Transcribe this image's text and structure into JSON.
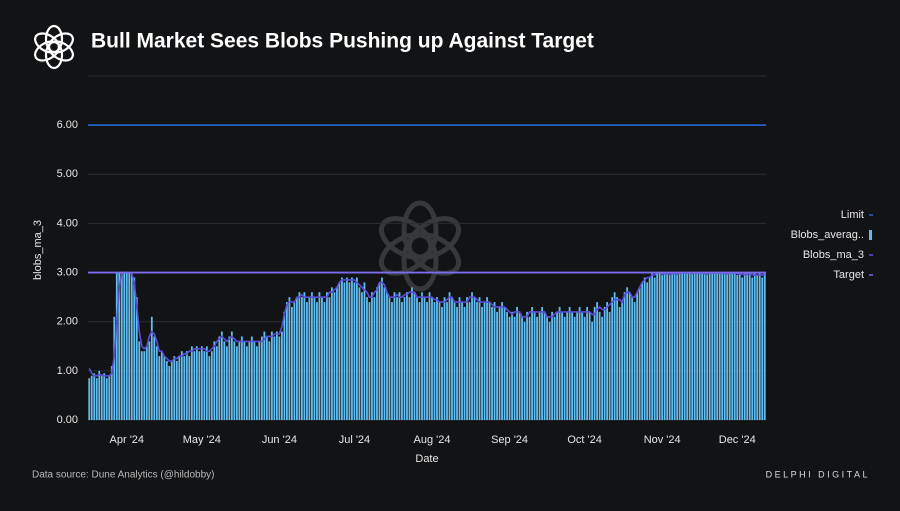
{
  "header": {
    "title": "Bull Market Sees Blobs Pushing up Against Target"
  },
  "footer": {
    "source": "Data source: Dune Analytics (@hildobby)",
    "brand": "DELPHI DIGITAL"
  },
  "chart_data": {
    "type": "bar",
    "x_label": "Date",
    "y_label": "blobs_ma_3",
    "ylim": [
      0,
      7
    ],
    "yticks": [
      {
        "value": 0,
        "label": "0.00"
      },
      {
        "value": 1,
        "label": "1.00"
      },
      {
        "value": 2,
        "label": "2.00"
      },
      {
        "value": 3,
        "label": "3.00"
      },
      {
        "value": 4,
        "label": "4.00"
      },
      {
        "value": 5,
        "label": "5.00"
      },
      {
        "value": 6,
        "label": "6.00"
      }
    ],
    "grid": true,
    "legend": "right",
    "categories": [
      null,
      null,
      null,
      null,
      null,
      null,
      null,
      null,
      null,
      null,
      null,
      null,
      null,
      null,
      null,
      "Apr '24",
      null,
      null,
      null,
      null,
      null,
      null,
      null,
      null,
      null,
      null,
      null,
      null,
      null,
      null,
      null,
      null,
      null,
      null,
      null,
      null,
      null,
      null,
      null,
      null,
      null,
      null,
      null,
      null,
      null,
      "May '24",
      null,
      null,
      null,
      null,
      null,
      null,
      null,
      null,
      null,
      null,
      null,
      null,
      null,
      null,
      null,
      null,
      null,
      null,
      null,
      null,
      null,
      null,
      null,
      null,
      null,
      null,
      null,
      null,
      null,
      null,
      "Jun '24",
      null,
      null,
      null,
      null,
      null,
      null,
      null,
      null,
      null,
      null,
      null,
      null,
      null,
      null,
      null,
      null,
      null,
      null,
      null,
      null,
      null,
      null,
      null,
      null,
      null,
      null,
      null,
      null,
      null,
      "Jul '24",
      null,
      null,
      null,
      null,
      null,
      null,
      null,
      null,
      null,
      null,
      null,
      null,
      null,
      null,
      null,
      null,
      null,
      null,
      null,
      null,
      null,
      null,
      null,
      null,
      null,
      null,
      null,
      null,
      null,
      null,
      "Aug '24",
      null,
      null,
      null,
      null,
      null,
      null,
      null,
      null,
      null,
      null,
      null,
      null,
      null,
      null,
      null,
      null,
      null,
      null,
      null,
      null,
      null,
      null,
      null,
      null,
      null,
      null,
      null,
      null,
      null,
      null,
      "Sep '24",
      null,
      null,
      null,
      null,
      null,
      null,
      null,
      null,
      null,
      null,
      null,
      null,
      null,
      null,
      null,
      null,
      null,
      null,
      null,
      null,
      null,
      null,
      null,
      null,
      null,
      null,
      null,
      null,
      null,
      "Oct '24",
      null,
      null,
      null,
      null,
      null,
      null,
      null,
      null,
      null,
      null,
      null,
      null,
      null,
      null,
      null,
      null,
      null,
      null,
      null,
      null,
      null,
      null,
      null,
      null,
      null,
      null,
      null,
      null,
      null,
      null,
      "Nov '24",
      null,
      null,
      null,
      null,
      null,
      null,
      null,
      null,
      null,
      null,
      null,
      null,
      null,
      null,
      null,
      null,
      null,
      null,
      null,
      null,
      null,
      null,
      null,
      null,
      null,
      null,
      null,
      null,
      null,
      "Dec '24",
      null,
      null,
      null,
      null,
      null,
      null,
      null,
      null,
      null,
      null,
      null
    ],
    "series": [
      {
        "name": "Limit",
        "type": "hline",
        "color": "#2563c9",
        "value": 6
      },
      {
        "name": "Blobs_averag..",
        "type": "bar",
        "color": "#62bdf0",
        "values": [
          0.85,
          0.9,
          0.95,
          0.85,
          1,
          0.9,
          0.95,
          0.85,
          0.9,
          1.1,
          2.1,
          3,
          3,
          3,
          3,
          3,
          3,
          3,
          2.9,
          2.5,
          1.6,
          1.4,
          1.4,
          1.5,
          1.6,
          2.1,
          1.7,
          1.5,
          1.3,
          1.4,
          1.3,
          1.2,
          1.1,
          1.2,
          1.3,
          1.2,
          1.3,
          1.4,
          1.3,
          1.4,
          1.3,
          1.5,
          1.4,
          1.5,
          1.4,
          1.5,
          1.4,
          1.5,
          1.3,
          1.4,
          1.6,
          1.5,
          1.7,
          1.8,
          1.6,
          1.5,
          1.7,
          1.8,
          1.6,
          1.5,
          1.6,
          1.7,
          1.6,
          1.5,
          1.6,
          1.7,
          1.6,
          1.5,
          1.6,
          1.7,
          1.8,
          1.7,
          1.6,
          1.8,
          1.7,
          1.8,
          1.7,
          1.8,
          2.2,
          2.4,
          2.5,
          2.3,
          2.4,
          2.5,
          2.6,
          2.5,
          2.6,
          2.4,
          2.5,
          2.6,
          2.5,
          2.4,
          2.6,
          2.5,
          2.4,
          2.6,
          2.5,
          2.7,
          2.6,
          2.7,
          2.8,
          2.9,
          2.8,
          2.9,
          2.8,
          2.9,
          2.8,
          2.9,
          2.7,
          2.6,
          2.8,
          2.5,
          2.4,
          2.6,
          2.5,
          2.7,
          2.8,
          2.9,
          2.7,
          2.6,
          2.5,
          2.4,
          2.6,
          2.5,
          2.6,
          2.4,
          2.5,
          2.6,
          2.5,
          2.7,
          2.6,
          2.5,
          2.4,
          2.6,
          2.5,
          2.4,
          2.6,
          2.5,
          2.4,
          2.5,
          2.4,
          2.3,
          2.5,
          2.4,
          2.6,
          2.5,
          2.4,
          2.3,
          2.5,
          2.4,
          2.3,
          2.5,
          2.4,
          2.6,
          2.5,
          2.4,
          2.5,
          2.3,
          2.4,
          2.5,
          2.4,
          2.3,
          2.4,
          2.2,
          2.3,
          2.4,
          2.3,
          2.2,
          2.1,
          2.2,
          2.1,
          2.3,
          2.2,
          2.1,
          2,
          2.2,
          2.1,
          2.3,
          2.2,
          2.1,
          2.2,
          2.3,
          2.2,
          2.1,
          2,
          2.2,
          2.1,
          2.2,
          2.3,
          2.2,
          2.1,
          2.2,
          2.3,
          2.2,
          2.1,
          2.2,
          2.3,
          2.2,
          2.1,
          2.3,
          2.2,
          2,
          2.3,
          2.4,
          2.2,
          2.1,
          2.3,
          2.4,
          2.2,
          2.5,
          2.6,
          2.5,
          2.3,
          2.4,
          2.6,
          2.7,
          2.6,
          2.5,
          2.4,
          2.6,
          2.7,
          2.8,
          2.9,
          2.8,
          2.9,
          3,
          2.9,
          3,
          3,
          2.95,
          3,
          2.98,
          2.95,
          3,
          2.97,
          2.96,
          3,
          2.98,
          3,
          2.99,
          3,
          2.97,
          3,
          2.98,
          3,
          2.99,
          3,
          2.96,
          3,
          2.98,
          3,
          2.99,
          3,
          2.98,
          3,
          2.97,
          3,
          2.99,
          3,
          2.95,
          3,
          2.9,
          3,
          2.98,
          3,
          2.9,
          3,
          2.95,
          3,
          2.9,
          3
        ]
      },
      {
        "name": "Blobs_ma_3",
        "type": "line",
        "color": "#5b4ed6",
        "values": [
          1.05,
          0.95,
          0.9,
          0.9,
          0.92,
          0.92,
          0.9,
          0.9,
          0.9,
          0.95,
          1.3,
          2,
          2.7,
          3,
          3,
          3,
          3,
          2.97,
          2.8,
          2.3,
          1.8,
          1.5,
          1.45,
          1.5,
          1.7,
          1.8,
          1.75,
          1.6,
          1.4,
          1.4,
          1.3,
          1.25,
          1.2,
          1.2,
          1.25,
          1.25,
          1.3,
          1.3,
          1.35,
          1.35,
          1.4,
          1.4,
          1.45,
          1.45,
          1.45,
          1.45,
          1.45,
          1.4,
          1.4,
          1.45,
          1.5,
          1.6,
          1.65,
          1.7,
          1.65,
          1.6,
          1.65,
          1.7,
          1.65,
          1.6,
          1.6,
          1.6,
          1.6,
          1.6,
          1.6,
          1.6,
          1.6,
          1.6,
          1.6,
          1.6,
          1.65,
          1.7,
          1.7,
          1.7,
          1.75,
          1.75,
          1.75,
          1.9,
          2.15,
          2.35,
          2.4,
          2.4,
          2.4,
          2.5,
          2.5,
          2.55,
          2.5,
          2.5,
          2.5,
          2.5,
          2.5,
          2.5,
          2.5,
          2.5,
          2.5,
          2.5,
          2.6,
          2.6,
          2.65,
          2.7,
          2.8,
          2.85,
          2.85,
          2.85,
          2.85,
          2.85,
          2.85,
          2.8,
          2.75,
          2.7,
          2.65,
          2.6,
          2.5,
          2.5,
          2.6,
          2.65,
          2.8,
          2.8,
          2.75,
          2.6,
          2.5,
          2.5,
          2.5,
          2.55,
          2.5,
          2.5,
          2.55,
          2.55,
          2.6,
          2.6,
          2.6,
          2.5,
          2.5,
          2.5,
          2.5,
          2.5,
          2.5,
          2.5,
          2.45,
          2.45,
          2.4,
          2.4,
          2.4,
          2.45,
          2.5,
          2.5,
          2.4,
          2.4,
          2.4,
          2.4,
          2.4,
          2.4,
          2.5,
          2.5,
          2.5,
          2.45,
          2.4,
          2.4,
          2.4,
          2.4,
          2.4,
          2.35,
          2.3,
          2.3,
          2.3,
          2.3,
          2.3,
          2.25,
          2.2,
          2.15,
          2.2,
          2.2,
          2.2,
          2.1,
          2.1,
          2.1,
          2.2,
          2.2,
          2.2,
          2.2,
          2.2,
          2.2,
          2.2,
          2.1,
          2.1,
          2.1,
          2.15,
          2.2,
          2.2,
          2.2,
          2.2,
          2.2,
          2.2,
          2.2,
          2.2,
          2.2,
          2.2,
          2.2,
          2.2,
          2.2,
          2.2,
          2.15,
          2.15,
          2.25,
          2.3,
          2.25,
          2.25,
          2.3,
          2.35,
          2.4,
          2.45,
          2.45,
          2.45,
          2.4,
          2.55,
          2.6,
          2.6,
          2.5,
          2.5,
          2.6,
          2.7,
          2.8,
          2.85,
          2.9,
          2.9,
          2.95,
          2.95,
          3,
          3,
          2.97,
          2.98,
          2.98,
          2.97,
          2.98,
          2.98,
          2.98,
          2.99,
          2.99,
          2.99,
          2.99,
          2.99,
          2.99,
          2.99,
          2.99,
          2.99,
          2.99,
          2.98,
          2.98,
          2.99,
          2.99,
          2.99,
          2.99,
          2.99,
          2.99,
          2.98,
          2.98,
          2.99,
          2.99,
          2.99,
          2.98,
          2.97,
          2.96,
          2.96,
          2.96,
          2.96,
          2.96,
          2.95,
          2.95,
          2.95,
          2.95,
          2.96
        ]
      },
      {
        "name": "Target",
        "type": "hline",
        "color": "#7b6df0",
        "value": 3
      }
    ]
  }
}
